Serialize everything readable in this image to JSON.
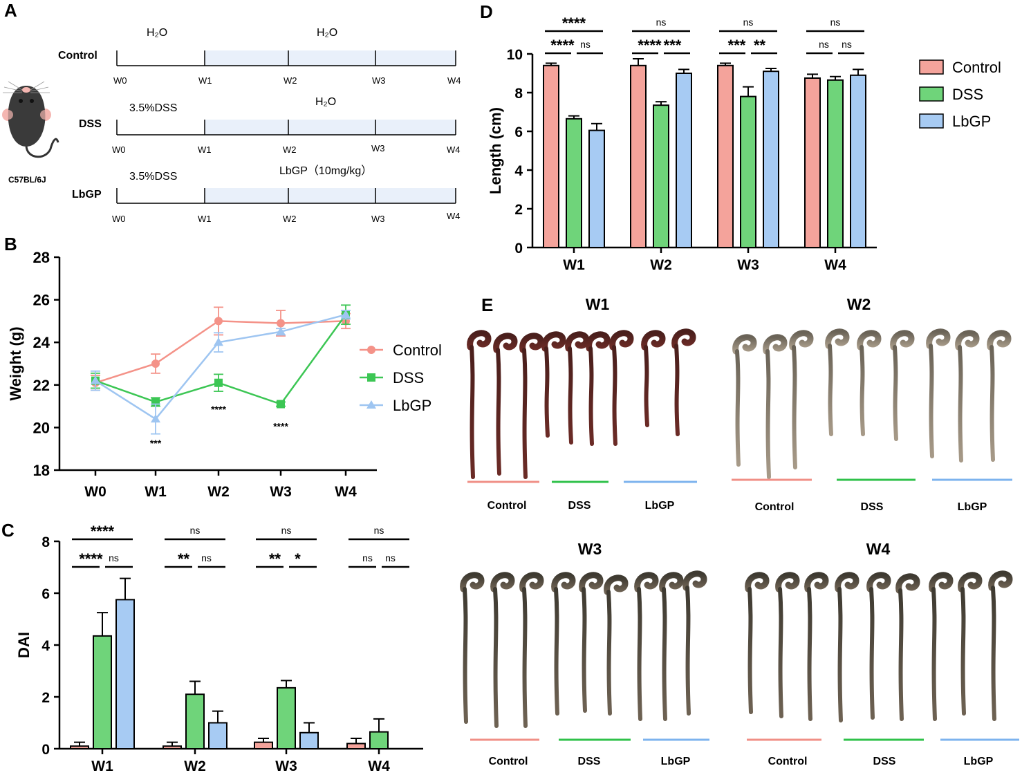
{
  "panel_letters": [
    "A",
    "B",
    "C",
    "D",
    "E"
  ],
  "colors": {
    "control": "#F4A39B",
    "dss": "#6FD47A",
    "lbgp": "#A7CBF3",
    "control_line": "#F49288",
    "dss_line": "#3CC654",
    "lbgp_line": "#9EC5F1",
    "control_bar_line": "#F08F86",
    "dss_bar_line": "#2FC14A",
    "lbgp_bar_line": "#7DB3EE",
    "shade": "#E9F0FA"
  },
  "panel_a": {
    "mouse_label": "C57BL/6J",
    "rows": [
      {
        "label": "Control",
        "first_text": "H₂O",
        "second_text": "H₂O",
        "weeks": [
          "W0",
          "W1",
          "W2",
          "W3",
          "W4"
        ]
      },
      {
        "label": "DSS",
        "first_text": "3.5%DSS",
        "second_text": "H₂O",
        "weeks": [
          "W0",
          "W1",
          "W2",
          "W3",
          "W4"
        ]
      },
      {
        "label": "LbGP",
        "first_text": "3.5%DSS",
        "second_text": "LbGP（10mg/kg）",
        "weeks": [
          "W0",
          "W1",
          "W2",
          "W3",
          "W4"
        ]
      }
    ]
  },
  "panel_e": {
    "groups": [
      "Control",
      "DSS",
      "LbGP"
    ],
    "weeks": [
      "W1",
      "W2",
      "W3",
      "W4"
    ]
  },
  "chart_data": [
    {
      "id": "B",
      "type": "line",
      "title": "",
      "xlabel": "",
      "ylabel": "Weight (g)",
      "categories": [
        "W0",
        "W1",
        "W2",
        "W3",
        "W4"
      ],
      "ylim": [
        18,
        28
      ],
      "yticks": [
        "18",
        "20",
        "22",
        "24",
        "26",
        "28"
      ],
      "series": [
        {
          "name": "Control",
          "marker": "circle",
          "values": [
            22.1,
            23.0,
            25.0,
            24.9,
            25.0
          ],
          "errors": [
            0.35,
            0.45,
            0.65,
            0.6,
            0.35
          ]
        },
        {
          "name": "DSS",
          "marker": "square",
          "values": [
            22.2,
            21.2,
            22.1,
            21.1,
            25.3
          ],
          "errors": [
            0.35,
            0.2,
            0.4,
            0.1,
            0.45
          ]
        },
        {
          "name": "LbGP",
          "marker": "triangle",
          "values": [
            22.2,
            20.4,
            24.0,
            24.5,
            25.3
          ],
          "errors": [
            0.45,
            0.7,
            0.45,
            0.15,
            0.2
          ]
        }
      ],
      "annotations": [
        {
          "x": "W1",
          "y": 19.1,
          "text": "***"
        },
        {
          "x": "W2",
          "y": 20.7,
          "text": "****"
        },
        {
          "x": "W3",
          "y": 19.9,
          "text": "****"
        }
      ],
      "legend": [
        "Control",
        "DSS",
        "LbGP"
      ]
    },
    {
      "id": "C",
      "type": "bar",
      "title": "",
      "xlabel": "",
      "ylabel": "DAI",
      "categories": [
        "W1",
        "W2",
        "W3",
        "W4"
      ],
      "ylim": [
        0,
        8
      ],
      "yticks": [
        "0",
        "2",
        "4",
        "6",
        "8"
      ],
      "series": [
        {
          "name": "Control",
          "values": [
            0.1,
            0.1,
            0.25,
            0.2
          ],
          "errors": [
            0.15,
            0.15,
            0.15,
            0.2
          ]
        },
        {
          "name": "DSS",
          "values": [
            4.35,
            2.1,
            2.35,
            0.65
          ],
          "errors": [
            0.9,
            0.5,
            0.28,
            0.5
          ]
        },
        {
          "name": "LbGP",
          "values": [
            5.75,
            1.0,
            0.62,
            null
          ],
          "errors": [
            0.82,
            0.45,
            0.38,
            null
          ]
        }
      ],
      "significance": [
        {
          "week": "W1",
          "top": "****",
          "pair1": "****",
          "pair2": "ns"
        },
        {
          "week": "W2",
          "top": "ns",
          "pair1": "**",
          "pair2": "ns"
        },
        {
          "week": "W3",
          "top": "ns",
          "pair1": "**",
          "pair2": "*"
        },
        {
          "week": "W4",
          "top": "ns",
          "pair1": "ns",
          "pair2": "ns"
        }
      ]
    },
    {
      "id": "D",
      "type": "bar",
      "title": "",
      "xlabel": "",
      "ylabel": "Length (cm)",
      "categories": [
        "W1",
        "W2",
        "W3",
        "W4"
      ],
      "ylim": [
        0,
        10
      ],
      "yticks": [
        "0",
        "2",
        "4",
        "6",
        "8",
        "10"
      ],
      "series": [
        {
          "name": "Control",
          "values": [
            9.4,
            9.4,
            9.4,
            8.75
          ],
          "errors": [
            0.12,
            0.35,
            0.12,
            0.2
          ]
        },
        {
          "name": "DSS",
          "values": [
            6.65,
            7.35,
            7.8,
            8.65
          ],
          "errors": [
            0.15,
            0.18,
            0.5,
            0.18
          ]
        },
        {
          "name": "LbGP",
          "values": [
            6.05,
            9.0,
            9.1,
            8.9
          ],
          "errors": [
            0.35,
            0.2,
            0.15,
            0.3
          ]
        }
      ],
      "significance": [
        {
          "week": "W1",
          "top": "****",
          "pair1": "****",
          "pair2": "ns"
        },
        {
          "week": "W2",
          "top": "ns",
          "pair1": "****",
          "pair2": "***"
        },
        {
          "week": "W3",
          "top": "ns",
          "pair1": "***",
          "pair2": "**"
        },
        {
          "week": "W4",
          "top": "ns",
          "pair1": "ns",
          "pair2": "ns"
        }
      ],
      "legend": [
        "Control",
        "DSS",
        "LbGP"
      ]
    }
  ]
}
